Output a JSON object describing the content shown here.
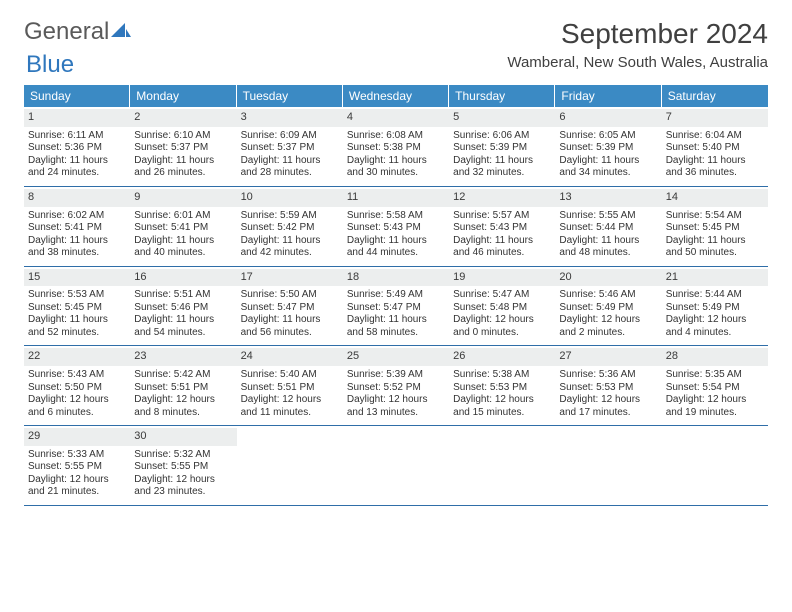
{
  "brand": {
    "part1": "General",
    "part2": "Blue"
  },
  "title": "September 2024",
  "location": "Wamberal, New South Wales, Australia",
  "colors": {
    "header_bg": "#3b8ac4",
    "week_border": "#2f6ea8",
    "daynum_bg": "#eceeee",
    "text": "#333333",
    "brand_gray": "#5a5a5a",
    "brand_blue": "#2f77bd"
  },
  "day_headers": [
    "Sunday",
    "Monday",
    "Tuesday",
    "Wednesday",
    "Thursday",
    "Friday",
    "Saturday"
  ],
  "weeks": [
    [
      {
        "n": "1",
        "sr": "Sunrise: 6:11 AM",
        "ss": "Sunset: 5:36 PM",
        "d1": "Daylight: 11 hours",
        "d2": "and 24 minutes."
      },
      {
        "n": "2",
        "sr": "Sunrise: 6:10 AM",
        "ss": "Sunset: 5:37 PM",
        "d1": "Daylight: 11 hours",
        "d2": "and 26 minutes."
      },
      {
        "n": "3",
        "sr": "Sunrise: 6:09 AM",
        "ss": "Sunset: 5:37 PM",
        "d1": "Daylight: 11 hours",
        "d2": "and 28 minutes."
      },
      {
        "n": "4",
        "sr": "Sunrise: 6:08 AM",
        "ss": "Sunset: 5:38 PM",
        "d1": "Daylight: 11 hours",
        "d2": "and 30 minutes."
      },
      {
        "n": "5",
        "sr": "Sunrise: 6:06 AM",
        "ss": "Sunset: 5:39 PM",
        "d1": "Daylight: 11 hours",
        "d2": "and 32 minutes."
      },
      {
        "n": "6",
        "sr": "Sunrise: 6:05 AM",
        "ss": "Sunset: 5:39 PM",
        "d1": "Daylight: 11 hours",
        "d2": "and 34 minutes."
      },
      {
        "n": "7",
        "sr": "Sunrise: 6:04 AM",
        "ss": "Sunset: 5:40 PM",
        "d1": "Daylight: 11 hours",
        "d2": "and 36 minutes."
      }
    ],
    [
      {
        "n": "8",
        "sr": "Sunrise: 6:02 AM",
        "ss": "Sunset: 5:41 PM",
        "d1": "Daylight: 11 hours",
        "d2": "and 38 minutes."
      },
      {
        "n": "9",
        "sr": "Sunrise: 6:01 AM",
        "ss": "Sunset: 5:41 PM",
        "d1": "Daylight: 11 hours",
        "d2": "and 40 minutes."
      },
      {
        "n": "10",
        "sr": "Sunrise: 5:59 AM",
        "ss": "Sunset: 5:42 PM",
        "d1": "Daylight: 11 hours",
        "d2": "and 42 minutes."
      },
      {
        "n": "11",
        "sr": "Sunrise: 5:58 AM",
        "ss": "Sunset: 5:43 PM",
        "d1": "Daylight: 11 hours",
        "d2": "and 44 minutes."
      },
      {
        "n": "12",
        "sr": "Sunrise: 5:57 AM",
        "ss": "Sunset: 5:43 PM",
        "d1": "Daylight: 11 hours",
        "d2": "and 46 minutes."
      },
      {
        "n": "13",
        "sr": "Sunrise: 5:55 AM",
        "ss": "Sunset: 5:44 PM",
        "d1": "Daylight: 11 hours",
        "d2": "and 48 minutes."
      },
      {
        "n": "14",
        "sr": "Sunrise: 5:54 AM",
        "ss": "Sunset: 5:45 PM",
        "d1": "Daylight: 11 hours",
        "d2": "and 50 minutes."
      }
    ],
    [
      {
        "n": "15",
        "sr": "Sunrise: 5:53 AM",
        "ss": "Sunset: 5:45 PM",
        "d1": "Daylight: 11 hours",
        "d2": "and 52 minutes."
      },
      {
        "n": "16",
        "sr": "Sunrise: 5:51 AM",
        "ss": "Sunset: 5:46 PM",
        "d1": "Daylight: 11 hours",
        "d2": "and 54 minutes."
      },
      {
        "n": "17",
        "sr": "Sunrise: 5:50 AM",
        "ss": "Sunset: 5:47 PM",
        "d1": "Daylight: 11 hours",
        "d2": "and 56 minutes."
      },
      {
        "n": "18",
        "sr": "Sunrise: 5:49 AM",
        "ss": "Sunset: 5:47 PM",
        "d1": "Daylight: 11 hours",
        "d2": "and 58 minutes."
      },
      {
        "n": "19",
        "sr": "Sunrise: 5:47 AM",
        "ss": "Sunset: 5:48 PM",
        "d1": "Daylight: 12 hours",
        "d2": "and 0 minutes."
      },
      {
        "n": "20",
        "sr": "Sunrise: 5:46 AM",
        "ss": "Sunset: 5:49 PM",
        "d1": "Daylight: 12 hours",
        "d2": "and 2 minutes."
      },
      {
        "n": "21",
        "sr": "Sunrise: 5:44 AM",
        "ss": "Sunset: 5:49 PM",
        "d1": "Daylight: 12 hours",
        "d2": "and 4 minutes."
      }
    ],
    [
      {
        "n": "22",
        "sr": "Sunrise: 5:43 AM",
        "ss": "Sunset: 5:50 PM",
        "d1": "Daylight: 12 hours",
        "d2": "and 6 minutes."
      },
      {
        "n": "23",
        "sr": "Sunrise: 5:42 AM",
        "ss": "Sunset: 5:51 PM",
        "d1": "Daylight: 12 hours",
        "d2": "and 8 minutes."
      },
      {
        "n": "24",
        "sr": "Sunrise: 5:40 AM",
        "ss": "Sunset: 5:51 PM",
        "d1": "Daylight: 12 hours",
        "d2": "and 11 minutes."
      },
      {
        "n": "25",
        "sr": "Sunrise: 5:39 AM",
        "ss": "Sunset: 5:52 PM",
        "d1": "Daylight: 12 hours",
        "d2": "and 13 minutes."
      },
      {
        "n": "26",
        "sr": "Sunrise: 5:38 AM",
        "ss": "Sunset: 5:53 PM",
        "d1": "Daylight: 12 hours",
        "d2": "and 15 minutes."
      },
      {
        "n": "27",
        "sr": "Sunrise: 5:36 AM",
        "ss": "Sunset: 5:53 PM",
        "d1": "Daylight: 12 hours",
        "d2": "and 17 minutes."
      },
      {
        "n": "28",
        "sr": "Sunrise: 5:35 AM",
        "ss": "Sunset: 5:54 PM",
        "d1": "Daylight: 12 hours",
        "d2": "and 19 minutes."
      }
    ],
    [
      {
        "n": "29",
        "sr": "Sunrise: 5:33 AM",
        "ss": "Sunset: 5:55 PM",
        "d1": "Daylight: 12 hours",
        "d2": "and 21 minutes."
      },
      {
        "n": "30",
        "sr": "Sunrise: 5:32 AM",
        "ss": "Sunset: 5:55 PM",
        "d1": "Daylight: 12 hours",
        "d2": "and 23 minutes."
      },
      {
        "empty": true
      },
      {
        "empty": true
      },
      {
        "empty": true
      },
      {
        "empty": true
      },
      {
        "empty": true
      }
    ]
  ]
}
